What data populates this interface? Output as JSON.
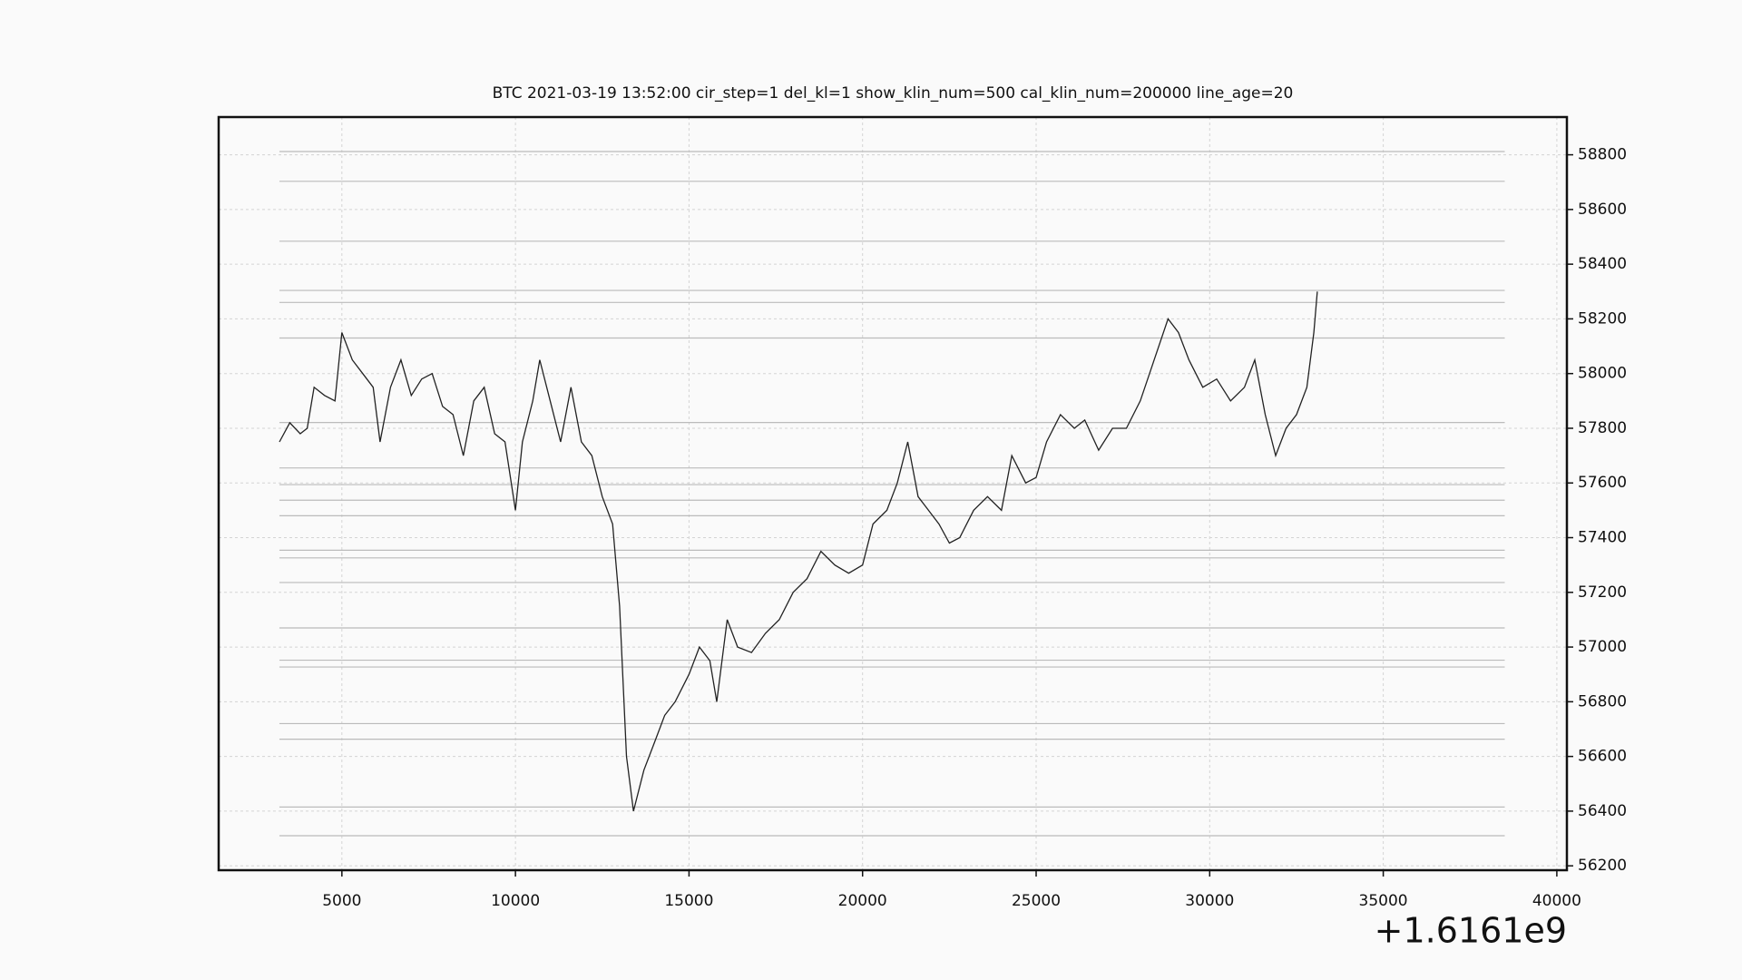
{
  "chart_data": {
    "type": "line",
    "title": "BTC    2021-03-19 13:52:00 cir_step=1 del_kl=1 show_klin_num=500 cal_klin_num=200000 line_age=20",
    "x_offset_label": "+1.6161e9",
    "x": [
      3200,
      3500,
      3800,
      4000,
      4200,
      4500,
      4800,
      5000,
      5300,
      5600,
      5900,
      6100,
      6400,
      6700,
      7000,
      7300,
      7600,
      7900,
      8200,
      8500,
      8800,
      9100,
      9400,
      9700,
      10000,
      10200,
      10500,
      10700,
      11000,
      11300,
      11600,
      11900,
      12200,
      12500,
      12800,
      13000,
      13200,
      13400,
      13700,
      14000,
      14300,
      14600,
      15000,
      15300,
      15600,
      15800,
      16100,
      16400,
      16800,
      17200,
      17600,
      18000,
      18400,
      18800,
      19200,
      19600,
      20000,
      20300,
      20700,
      21000,
      21300,
      21600,
      21900,
      22200,
      22500,
      22800,
      23200,
      23600,
      24000,
      24300,
      24700,
      25000,
      25300,
      25700,
      26100,
      26400,
      26800,
      27200,
      27600,
      28000,
      28400,
      28800,
      29100,
      29400,
      29800,
      30200,
      30600,
      31000,
      31300,
      31600,
      31900,
      32200,
      32500,
      32800,
      33000,
      33100
    ],
    "series": [
      {
        "color": "#222222",
        "values": [
          57750,
          57820,
          57780,
          57800,
          57950,
          57920,
          57900,
          58150,
          58050,
          58000,
          57950,
          57750,
          57950,
          58050,
          57920,
          57980,
          58000,
          57880,
          57850,
          57700,
          57900,
          57950,
          57780,
          57750,
          57500,
          57750,
          57900,
          58050,
          57900,
          57750,
          57950,
          57750,
          57700,
          57550,
          57450,
          57150,
          56600,
          56400,
          56550,
          56650,
          56750,
          56800,
          56900,
          57000,
          56950,
          56800,
          57100,
          57000,
          56980,
          57050,
          57100,
          57200,
          57250,
          57350,
          57300,
          57270,
          57300,
          57450,
          57500,
          57600,
          57750,
          57550,
          57500,
          57450,
          57380,
          57400,
          57500,
          57550,
          57500,
          57700,
          57600,
          57620,
          57750,
          57850,
          57800,
          57830,
          57720,
          57800,
          57800,
          57900,
          58050,
          58200,
          58150,
          58050,
          57950,
          57980,
          57900,
          57950,
          58050,
          57850,
          57700,
          57800,
          57850,
          57950,
          58150,
          58300
        ]
      }
    ],
    "hlines": {
      "color": "#bbbbbb",
      "x_range": [
        3200,
        38500
      ],
      "values": [
        58812,
        58703,
        58484,
        58304,
        58260,
        58130,
        57821,
        57655,
        57594,
        57537,
        57480,
        57354,
        57326,
        57236,
        57070,
        56952,
        56927,
        56720,
        56663,
        56415,
        56310
      ]
    },
    "xlim": [
      1450,
      40290
    ],
    "ylim": [
      56184,
      58938
    ],
    "xticks": [
      5000,
      10000,
      15000,
      20000,
      25000,
      30000,
      35000,
      40000
    ],
    "yticks": [
      56200,
      56400,
      56600,
      56800,
      57000,
      57200,
      57400,
      57600,
      57800,
      58000,
      58200,
      58400,
      58600,
      58800
    ],
    "grid": true
  }
}
